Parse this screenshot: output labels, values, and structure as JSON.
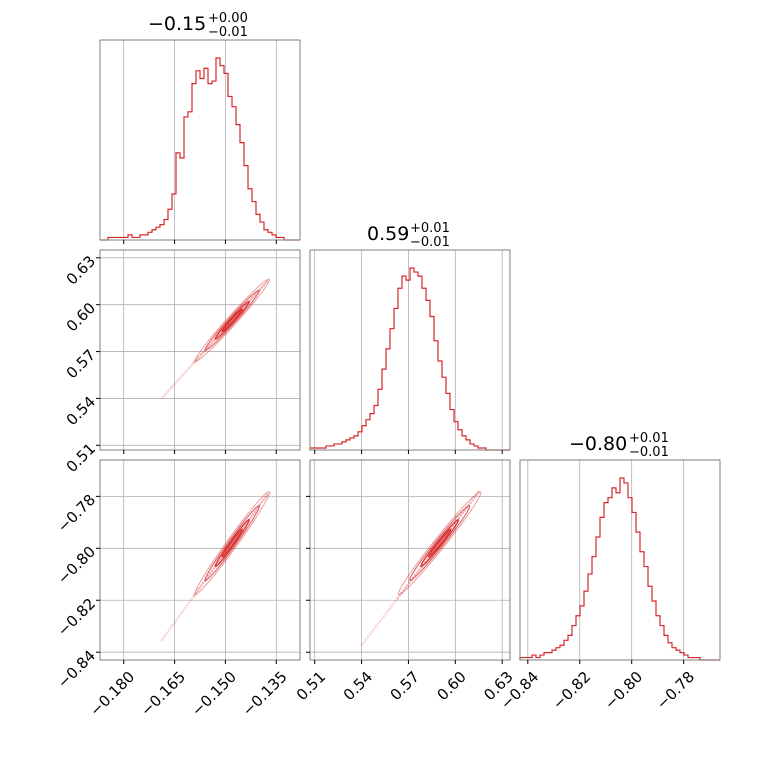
{
  "chart_data": {
    "type": "corner",
    "color": "#d62728",
    "grid": true,
    "parameters": [
      {
        "index": 0,
        "title": {
          "main": "−0.15",
          "upper": "+0.00",
          "lower": "−0.01"
        },
        "range": [
          -0.187,
          -0.128
        ],
        "ticks": [
          -0.18,
          -0.165,
          -0.15,
          -0.135
        ],
        "tick_labels": [
          "−0.180",
          "−0.165",
          "−0.150",
          "−0.135"
        ],
        "hist_counts": [
          0,
          0,
          1,
          1,
          1,
          1,
          1,
          2,
          1,
          1,
          2,
          2,
          3,
          4,
          5,
          6,
          8,
          12,
          18,
          34,
          32,
          48,
          50,
          61,
          66,
          63,
          67,
          61,
          62,
          71,
          68,
          65,
          56,
          52,
          45,
          38,
          29,
          20,
          15,
          10,
          7,
          4,
          3,
          2,
          1,
          1,
          0,
          0,
          0,
          0
        ]
      },
      {
        "index": 1,
        "title": {
          "main": "0.59",
          "upper": "+0.01",
          "lower": "−0.01"
        },
        "range": [
          0.507,
          0.635
        ],
        "ticks": [
          0.51,
          0.54,
          0.57,
          0.6,
          0.63
        ],
        "tick_labels": [
          "0.51",
          "0.54",
          "0.57",
          "0.60",
          "0.63"
        ],
        "hist_counts": [
          1,
          1,
          1,
          1,
          2,
          2,
          3,
          3,
          4,
          5,
          6,
          7,
          9,
          12,
          15,
          18,
          22,
          30,
          40,
          50,
          60,
          70,
          80,
          86,
          84,
          90,
          88,
          86,
          80,
          74,
          66,
          54,
          44,
          36,
          28,
          20,
          14,
          10,
          7,
          5,
          3,
          2,
          1,
          1,
          0,
          0,
          0,
          0,
          0,
          0
        ]
      },
      {
        "index": 2,
        "title": {
          "main": "−0.80",
          "upper": "+0.01",
          "lower": "−0.01"
        },
        "range": [
          -0.843,
          -0.766
        ],
        "ticks": [
          -0.84,
          -0.82,
          -0.8,
          -0.78
        ],
        "tick_labels": [
          "−0.84",
          "−0.82",
          "−0.80",
          "−0.78"
        ],
        "hist_counts": [
          1,
          1,
          1,
          2,
          1,
          2,
          3,
          3,
          4,
          5,
          6,
          8,
          10,
          14,
          18,
          22,
          28,
          35,
          42,
          50,
          58,
          64,
          66,
          70,
          68,
          74,
          72,
          66,
          60,
          52,
          44,
          38,
          30,
          24,
          18,
          14,
          10,
          7,
          5,
          4,
          3,
          2,
          1,
          1,
          1,
          0,
          0,
          0,
          0,
          0
        ]
      }
    ]
  }
}
